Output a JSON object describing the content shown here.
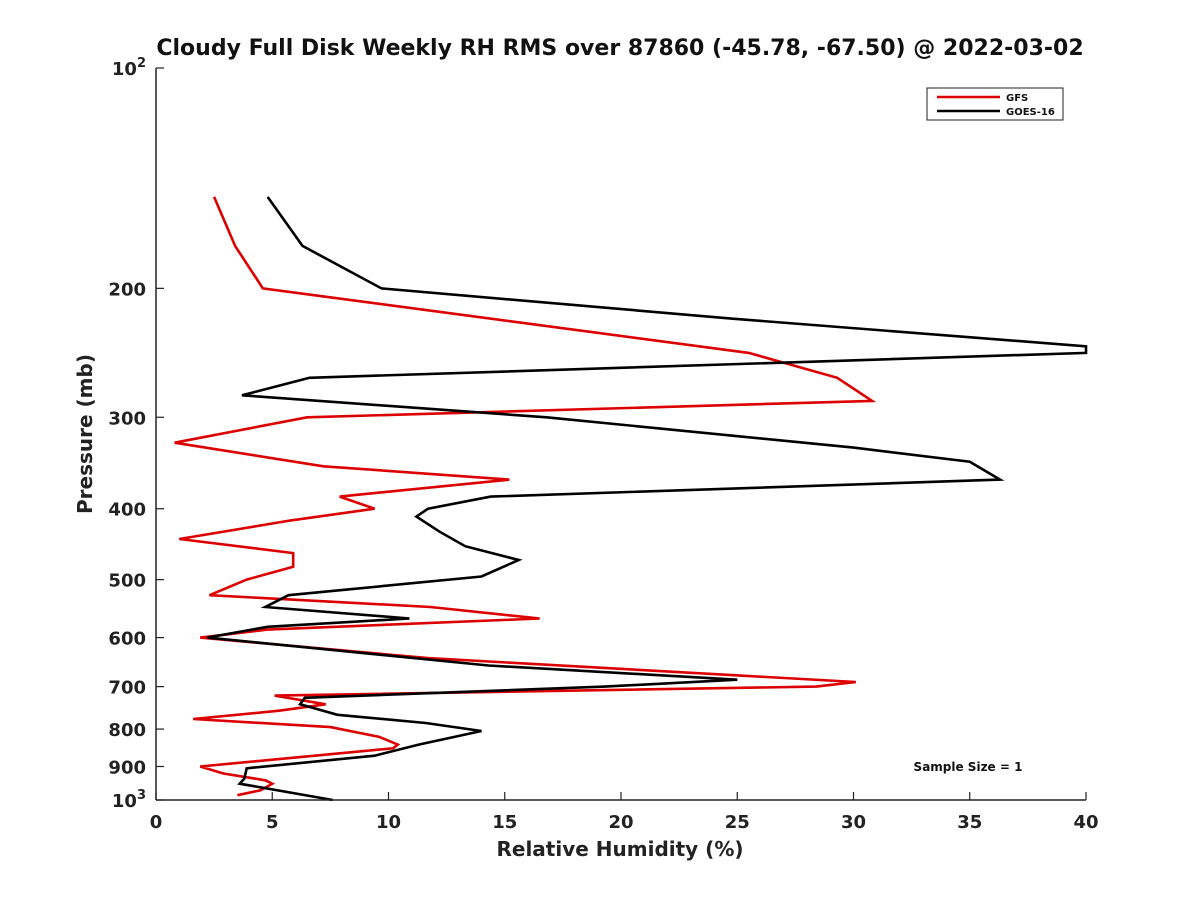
{
  "chart_data": {
    "type": "line",
    "title": "Cloudy Full Disk Weekly RH RMS over 87860 (-45.78, -67.50) @ 2022-03-02",
    "xlabel": "Relative Humidity (%)",
    "ylabel": "Pressure (mb)",
    "xlim": [
      0,
      40
    ],
    "ylim": [
      100,
      1000
    ],
    "yscale": "log",
    "y_reversed": true,
    "x_ticks": [
      "0",
      "5",
      "10",
      "15",
      "20",
      "25",
      "30",
      "35",
      "40"
    ],
    "y_ticks": [
      {
        "value": 100,
        "base": "10",
        "exp": "2"
      },
      {
        "value": 200,
        "label": "200"
      },
      {
        "value": 300,
        "label": "300"
      },
      {
        "value": 400,
        "label": "400"
      },
      {
        "value": 500,
        "label": "500"
      },
      {
        "value": 600,
        "label": "600"
      },
      {
        "value": 700,
        "label": "700"
      },
      {
        "value": 800,
        "label": "800"
      },
      {
        "value": 900,
        "label": "900"
      },
      {
        "value": 1000,
        "base": "10",
        "exp": "3"
      }
    ],
    "legend_position": "top-right",
    "grid": false,
    "annotation": "Sample Size = 1",
    "series": [
      {
        "name": "GFS",
        "color": "#dd0000",
        "points": [
          [
            2.5,
            150
          ],
          [
            3.4,
            175
          ],
          [
            4.6,
            200
          ],
          [
            25.5,
            245
          ],
          [
            29.3,
            265
          ],
          [
            30.8,
            285
          ],
          [
            6.5,
            300
          ],
          [
            0.8,
            325
          ],
          [
            7.2,
            350
          ],
          [
            15.2,
            365
          ],
          [
            7.9,
            385
          ],
          [
            9.4,
            400
          ],
          [
            5.8,
            415
          ],
          [
            1.0,
            440
          ],
          [
            5.9,
            460
          ],
          [
            5.9,
            480
          ],
          [
            3.9,
            500
          ],
          [
            2.3,
            525
          ],
          [
            11.8,
            545
          ],
          [
            16.5,
            565
          ],
          [
            4.8,
            585
          ],
          [
            1.9,
            600
          ],
          [
            11.7,
            640
          ],
          [
            30.1,
            690
          ],
          [
            28.4,
            700
          ],
          [
            5.1,
            720
          ],
          [
            7.3,
            740
          ],
          [
            5.3,
            755
          ],
          [
            1.6,
            775
          ],
          [
            7.5,
            795
          ],
          [
            9.6,
            820
          ],
          [
            10.4,
            840
          ],
          [
            10.2,
            850
          ],
          [
            1.9,
            900
          ],
          [
            2.9,
            920
          ],
          [
            4.7,
            940
          ],
          [
            5.0,
            950
          ],
          [
            4.5,
            970
          ],
          [
            3.5,
            985
          ]
        ]
      },
      {
        "name": "GOES-16",
        "color": "#000000",
        "points": [
          [
            4.8,
            150
          ],
          [
            6.3,
            175
          ],
          [
            9.7,
            200
          ],
          [
            24.8,
            220
          ],
          [
            40.0,
            240
          ],
          [
            40.0,
            245
          ],
          [
            6.6,
            265
          ],
          [
            3.7,
            280
          ],
          [
            16.8,
            300
          ],
          [
            30.0,
            330
          ],
          [
            35.0,
            345
          ],
          [
            36.3,
            365
          ],
          [
            14.4,
            385
          ],
          [
            11.7,
            400
          ],
          [
            11.2,
            410
          ],
          [
            12.2,
            430
          ],
          [
            13.3,
            450
          ],
          [
            15.6,
            470
          ],
          [
            14.0,
            495
          ],
          [
            5.7,
            525
          ],
          [
            4.7,
            545
          ],
          [
            10.9,
            565
          ],
          [
            4.8,
            580
          ],
          [
            2.2,
            600
          ],
          [
            14.3,
            655
          ],
          [
            25.0,
            685
          ],
          [
            19.3,
            700
          ],
          [
            6.4,
            725
          ],
          [
            6.2,
            740
          ],
          [
            7.8,
            765
          ],
          [
            11.6,
            785
          ],
          [
            14.0,
            805
          ],
          [
            11.3,
            840
          ],
          [
            9.4,
            870
          ],
          [
            3.9,
            905
          ],
          [
            3.8,
            935
          ],
          [
            3.6,
            950
          ],
          [
            7.6,
            1000
          ]
        ]
      }
    ]
  }
}
